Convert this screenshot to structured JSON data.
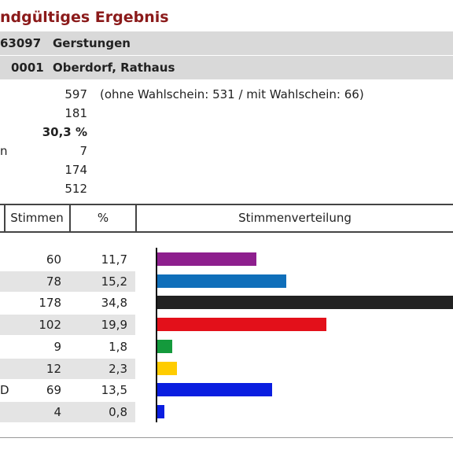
{
  "header": {
    "title": "ndgültiges Ergebnis",
    "municipality_code": "63097",
    "municipality_name": "Gerstungen",
    "district_code": "0001",
    "district_name": "Oberdorf, Rathaus"
  },
  "stats": {
    "voters": "597",
    "voters_note": "(ohne Wahlschein: 531 / mit Wahlschein: 66)",
    "votes_cast": "181",
    "turnout": "30,3 %",
    "invalid": "7",
    "invalid_label_fragment": "n",
    "valid": "174",
    "total_votes": "512"
  },
  "table": {
    "col_votes": "Stimmen",
    "col_percent": "%",
    "col_distribution": "Stimmenverteilung",
    "rows": [
      {
        "votes": "60",
        "percent": "11,7",
        "color": "#8e1f8e",
        "label_fragment": ""
      },
      {
        "votes": "78",
        "percent": "15,2",
        "color": "#0f6fba",
        "label_fragment": ""
      },
      {
        "votes": "178",
        "percent": "34,8",
        "color": "#222222",
        "label_fragment": ""
      },
      {
        "votes": "102",
        "percent": "19,9",
        "color": "#e3101a",
        "label_fragment": ""
      },
      {
        "votes": "9",
        "percent": "1,8",
        "color": "#149a3c",
        "label_fragment": ""
      },
      {
        "votes": "12",
        "percent": "2,3",
        "color": "#ffcc00",
        "label_fragment": ""
      },
      {
        "votes": "69",
        "percent": "13,5",
        "color": "#0a1ee0",
        "label_fragment": "D"
      },
      {
        "votes": "4",
        "percent": "0,8",
        "color": "#0a1ee0",
        "label_fragment": ""
      }
    ]
  }
}
